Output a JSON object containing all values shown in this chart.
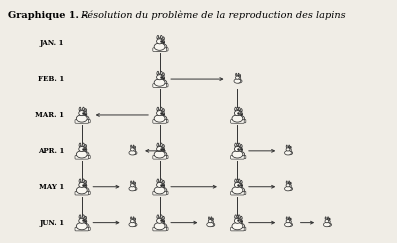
{
  "title_bold": "Graphique 1. –",
  "title_italic": "Résolution du problème de la reproduction des lapins",
  "background_color": "#f0ede6",
  "text_color": "#1a1a1a",
  "figsize": [
    3.97,
    2.43
  ],
  "dpi": 100,
  "xlim": [
    0,
    10
  ],
  "ylim": [
    -0.5,
    6.0
  ],
  "month_labels": [
    "JAN. 1",
    "FEB. 1",
    "MAR. 1",
    "APR. 1",
    "MAY 1",
    "JUN. 1"
  ],
  "month_y": [
    5.0,
    4.0,
    3.0,
    2.0,
    1.0,
    0.0
  ],
  "month_x": 1.55,
  "adult_positions": [
    [
      4.0,
      5.0
    ],
    [
      4.0,
      4.0
    ],
    [
      4.0,
      3.0
    ],
    [
      2.0,
      3.0
    ],
    [
      6.0,
      3.0
    ],
    [
      4.0,
      2.0
    ],
    [
      2.0,
      2.0
    ],
    [
      6.0,
      2.0
    ],
    [
      4.0,
      1.0
    ],
    [
      2.0,
      1.0
    ],
    [
      6.0,
      1.0
    ],
    [
      4.0,
      0.0
    ],
    [
      2.0,
      0.0
    ],
    [
      6.0,
      0.0
    ]
  ],
  "young_positions": [
    [
      6.0,
      4.0
    ],
    [
      3.3,
      2.0
    ],
    [
      7.3,
      2.0
    ],
    [
      3.3,
      1.0
    ],
    [
      7.3,
      1.0
    ],
    [
      3.3,
      0.0
    ],
    [
      5.3,
      0.0
    ],
    [
      7.3,
      0.0
    ],
    [
      8.3,
      0.0
    ]
  ],
  "vertical_lines": [
    [
      4.0,
      4.72,
      4.0,
      4.22
    ],
    [
      4.0,
      3.72,
      4.0,
      3.22
    ],
    [
      6.0,
      3.72,
      6.0,
      3.22
    ],
    [
      4.0,
      2.72,
      4.0,
      2.22
    ],
    [
      2.0,
      2.72,
      2.0,
      2.22
    ],
    [
      6.0,
      2.72,
      6.0,
      2.22
    ],
    [
      4.0,
      1.72,
      4.0,
      1.22
    ],
    [
      2.0,
      1.72,
      2.0,
      1.22
    ],
    [
      6.0,
      1.72,
      6.0,
      1.22
    ],
    [
      4.0,
      0.72,
      4.0,
      0.22
    ],
    [
      2.0,
      0.72,
      2.0,
      0.22
    ],
    [
      6.0,
      0.72,
      6.0,
      0.22
    ]
  ],
  "horiz_arrows": [
    [
      4.22,
      4.0,
      5.72,
      4.0
    ],
    [
      3.78,
      3.0,
      2.28,
      3.0
    ],
    [
      4.22,
      2.0,
      3.55,
      2.0
    ],
    [
      6.22,
      2.0,
      7.05,
      2.0
    ],
    [
      4.22,
      1.0,
      5.55,
      1.0
    ],
    [
      2.22,
      1.0,
      3.05,
      1.0
    ],
    [
      6.22,
      1.0,
      7.05,
      1.0
    ],
    [
      4.22,
      0.0,
      5.05,
      0.0
    ],
    [
      2.22,
      0.0,
      3.05,
      0.0
    ],
    [
      6.22,
      0.0,
      7.05,
      0.0
    ],
    [
      7.55,
      0.0,
      8.05,
      0.0
    ]
  ]
}
